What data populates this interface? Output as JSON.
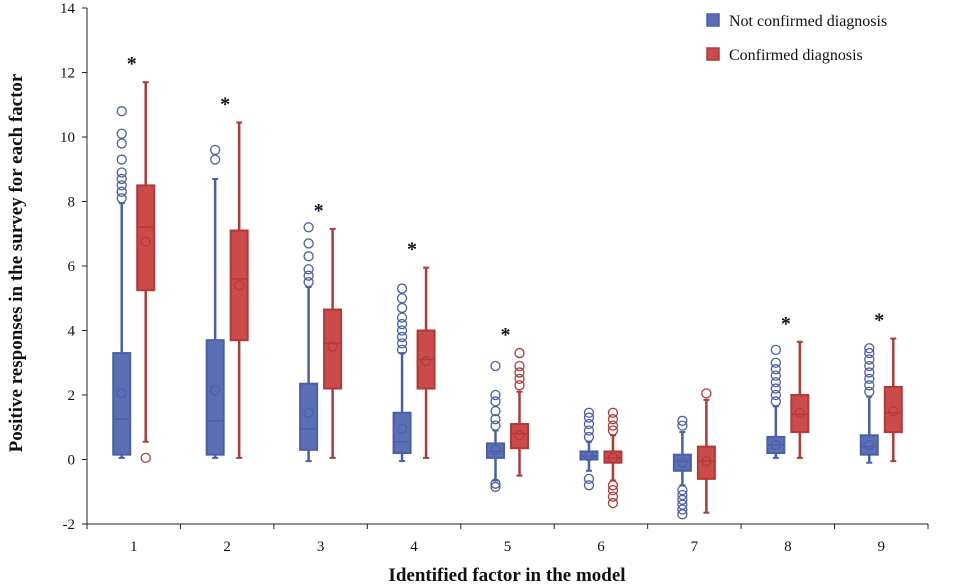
{
  "chart_data": {
    "type": "boxplot",
    "title": "",
    "xlabel": "Identified factor in the model",
    "ylabel": "Positive responses in the survey for each factor",
    "ylim": [
      -2,
      14
    ],
    "yticks": [
      -2,
      0,
      2,
      4,
      6,
      8,
      10,
      12,
      14
    ],
    "categories": [
      "1",
      "2",
      "3",
      "4",
      "5",
      "6",
      "7",
      "8",
      "9"
    ],
    "legend_position": "top-right",
    "significance_marker": "*",
    "significant_categories": [
      "1",
      "2",
      "3",
      "4",
      "5",
      "8",
      "9"
    ],
    "series": [
      {
        "name": "Not confirmed diagnosis",
        "color": "#4a5fa8",
        "fill": "#5b6fb5",
        "boxes": [
          {
            "whisker_low": 0.05,
            "q1": 0.15,
            "median": 1.25,
            "q3": 3.3,
            "whisker_high": 7.95,
            "mean": 2.05,
            "outliers": [
              8.1,
              8.3,
              8.5,
              8.7,
              8.9,
              9.3,
              9.8,
              10.1,
              10.8
            ]
          },
          {
            "whisker_low": 0.05,
            "q1": 0.15,
            "median": 1.2,
            "q3": 3.7,
            "whisker_high": 8.7,
            "mean": 2.15,
            "outliers": [
              9.3,
              9.6
            ]
          },
          {
            "whisker_low": -0.05,
            "q1": 0.3,
            "median": 0.95,
            "q3": 2.35,
            "whisker_high": 5.35,
            "mean": 1.45,
            "outliers": [
              5.5,
              5.7,
              5.9,
              6.3,
              6.7,
              7.2
            ]
          },
          {
            "whisker_low": -0.05,
            "q1": 0.2,
            "median": 0.55,
            "q3": 1.45,
            "whisker_high": 3.3,
            "mean": 0.95,
            "outliers": [
              3.4,
              3.6,
              3.8,
              4.0,
              4.2,
              4.4,
              4.7,
              5.0,
              5.3
            ]
          },
          {
            "whisker_low": -0.65,
            "q1": 0.05,
            "median": 0.25,
            "q3": 0.5,
            "whisker_high": 0.9,
            "mean": 0.3,
            "outliers": [
              -0.85,
              -0.75,
              1.05,
              1.25,
              1.5,
              1.8,
              2.0,
              2.9
            ]
          },
          {
            "whisker_low": -0.35,
            "q1": 0.0,
            "median": 0.1,
            "q3": 0.25,
            "whisker_high": 0.55,
            "mean": 0.1,
            "outliers": [
              -0.8,
              -0.6,
              0.7,
              0.9,
              1.1,
              1.3,
              1.45
            ]
          },
          {
            "whisker_low": -0.8,
            "q1": -0.35,
            "median": -0.05,
            "q3": 0.15,
            "whisker_high": 0.85,
            "mean": -0.1,
            "outliers": [
              -1.7,
              -1.55,
              -1.4,
              -1.25,
              -1.1,
              -0.95,
              1.05,
              1.2
            ]
          },
          {
            "whisker_low": 0.05,
            "q1": 0.2,
            "median": 0.45,
            "q3": 0.7,
            "whisker_high": 1.65,
            "mean": 0.45,
            "outliers": [
              1.8,
              2.0,
              2.2,
              2.4,
              2.6,
              2.8,
              3.0,
              3.4
            ]
          },
          {
            "whisker_low": -0.1,
            "q1": 0.15,
            "median": 0.4,
            "q3": 0.75,
            "whisker_high": 1.95,
            "mean": 0.45,
            "outliers": [
              2.1,
              2.3,
              2.5,
              2.7,
              2.9,
              3.1,
              3.3,
              3.45
            ]
          }
        ]
      },
      {
        "name": "Confirmed diagnosis",
        "color": "#b03a3a",
        "fill": "#cc4a4a",
        "boxes": [
          {
            "whisker_low": 0.55,
            "q1": 5.25,
            "median": 7.2,
            "q3": 8.5,
            "whisker_high": 11.7,
            "mean": 6.75,
            "outliers": [
              0.05
            ]
          },
          {
            "whisker_low": 0.05,
            "q1": 3.7,
            "median": 5.6,
            "q3": 7.1,
            "whisker_high": 10.45,
            "mean": 5.4,
            "outliers": []
          },
          {
            "whisker_low": 0.05,
            "q1": 2.2,
            "median": 3.6,
            "q3": 4.65,
            "whisker_high": 7.15,
            "mean": 3.5,
            "outliers": []
          },
          {
            "whisker_low": 0.05,
            "q1": 2.2,
            "median": 3.1,
            "q3": 4.0,
            "whisker_high": 5.95,
            "mean": 3.05,
            "outliers": []
          },
          {
            "whisker_low": -0.5,
            "q1": 0.35,
            "median": 0.8,
            "q3": 1.1,
            "whisker_high": 2.1,
            "mean": 0.75,
            "outliers": [
              2.3,
              2.5,
              2.7,
              2.9,
              3.3
            ]
          },
          {
            "whisker_low": -0.65,
            "q1": -0.1,
            "median": 0.05,
            "q3": 0.25,
            "whisker_high": 0.75,
            "mean": 0.05,
            "outliers": [
              -1.35,
              -1.15,
              -0.95,
              -0.8,
              0.9,
              1.05,
              1.25,
              1.45
            ]
          },
          {
            "whisker_low": -1.65,
            "q1": -0.6,
            "median": -0.05,
            "q3": 0.4,
            "whisker_high": 1.85,
            "mean": -0.05,
            "outliers": [
              2.05
            ]
          },
          {
            "whisker_low": 0.05,
            "q1": 0.85,
            "median": 1.4,
            "q3": 2.0,
            "whisker_high": 3.65,
            "mean": 1.45,
            "outliers": []
          },
          {
            "whisker_low": -0.05,
            "q1": 0.85,
            "median": 1.45,
            "q3": 2.25,
            "whisker_high": 3.75,
            "mean": 1.5,
            "outliers": []
          }
        ]
      }
    ]
  }
}
